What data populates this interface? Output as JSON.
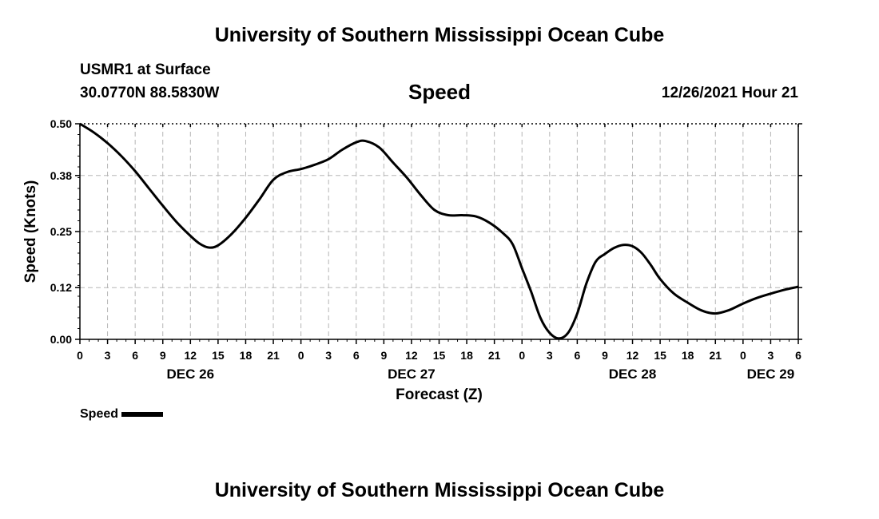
{
  "header": {
    "title": "University of Southern Mississippi Ocean Cube",
    "station": "USMR1 at Surface",
    "coords": "30.0770N  88.5830W",
    "variable": "Speed",
    "datetime": "12/26/2021 Hour 21"
  },
  "footer": {
    "title": "University of Southern Mississippi Ocean Cube"
  },
  "chart_data": {
    "type": "line",
    "title": "Speed",
    "xlabel": "Forecast (Z)",
    "ylabel": "Speed (Knots)",
    "x_unit": "hours",
    "x_range": [
      0,
      78
    ],
    "ylim": [
      0,
      0.5
    ],
    "y_ticks": [
      0.0,
      0.12,
      0.25,
      0.38,
      0.5
    ],
    "y_tick_labels": [
      "0.00",
      "0.12",
      "0.25",
      "0.38",
      "0.50"
    ],
    "x_ticks": [
      0,
      3,
      6,
      9,
      12,
      15,
      18,
      21,
      24,
      27,
      30,
      33,
      36,
      39,
      42,
      45,
      48,
      51,
      54,
      57,
      60,
      63,
      66,
      69,
      72,
      75,
      78
    ],
    "x_tick_labels": [
      "0",
      "3",
      "6",
      "9",
      "12",
      "15",
      "18",
      "21",
      "0",
      "3",
      "6",
      "9",
      "12",
      "15",
      "18",
      "21",
      "0",
      "3",
      "6",
      "9",
      "12",
      "15",
      "18",
      "21",
      "0",
      "3",
      "6"
    ],
    "day_labels": [
      {
        "x": 12,
        "label": "DEC 26"
      },
      {
        "x": 36,
        "label": "DEC 27"
      },
      {
        "x": 60,
        "label": "DEC 28"
      },
      {
        "x": 75,
        "label": "DEC 29"
      }
    ],
    "grid": true,
    "legend": "bottom-left",
    "series": [
      {
        "name": "Speed",
        "color": "#000000",
        "x": [
          0,
          1.5,
          3,
          4.5,
          6,
          7.5,
          9,
          10.5,
          12,
          13,
          14,
          15,
          16.5,
          18,
          19.5,
          21,
          22.5,
          24,
          25.5,
          27,
          28.5,
          30,
          31,
          32.5,
          34,
          35.5,
          37,
          38.5,
          40,
          41.5,
          43,
          44.5,
          46,
          47,
          48,
          49,
          50,
          51,
          52,
          53,
          54,
          55,
          56,
          57,
          58,
          59,
          60,
          61,
          62,
          63,
          64.5,
          66,
          67.5,
          69,
          70.5,
          72,
          73.5,
          75,
          76.5,
          78
        ],
        "y": [
          0.5,
          0.48,
          0.455,
          0.425,
          0.39,
          0.35,
          0.31,
          0.272,
          0.24,
          0.222,
          0.213,
          0.218,
          0.245,
          0.282,
          0.325,
          0.37,
          0.388,
          0.395,
          0.405,
          0.418,
          0.44,
          0.457,
          0.46,
          0.445,
          0.41,
          0.375,
          0.335,
          0.3,
          0.288,
          0.288,
          0.285,
          0.27,
          0.245,
          0.22,
          0.165,
          0.11,
          0.05,
          0.015,
          0.002,
          0.015,
          0.06,
          0.13,
          0.18,
          0.198,
          0.212,
          0.219,
          0.216,
          0.2,
          0.172,
          0.14,
          0.106,
          0.085,
          0.067,
          0.06,
          0.068,
          0.083,
          0.096,
          0.106,
          0.115,
          0.122
        ]
      }
    ]
  }
}
